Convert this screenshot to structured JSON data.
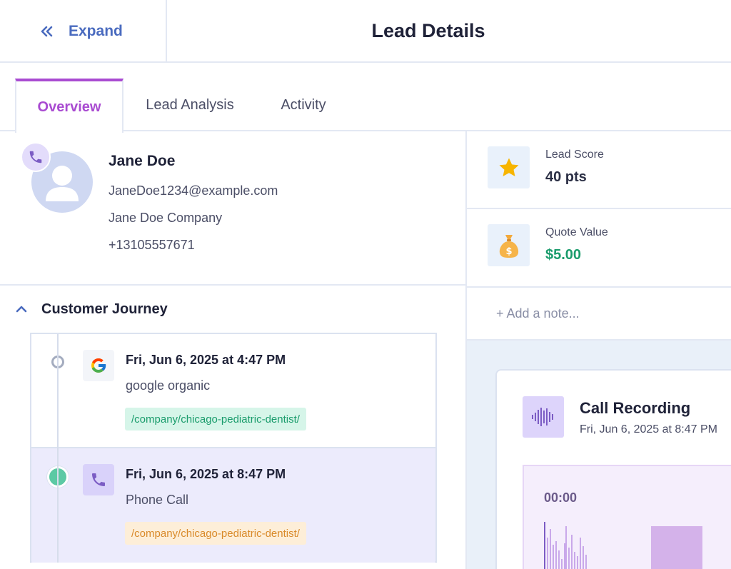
{
  "header": {
    "expand_label": "Expand",
    "title": "Lead Details"
  },
  "tabs": [
    {
      "label": "Overview",
      "active": true
    },
    {
      "label": "Lead Analysis",
      "active": false
    },
    {
      "label": "Activity",
      "active": false
    }
  ],
  "profile": {
    "name": "Jane Doe",
    "email": "JaneDoe1234@example.com",
    "company": "Jane Doe Company",
    "phone": "+13105557671"
  },
  "journey": {
    "title": "Customer Journey",
    "events": [
      {
        "icon": "google-icon",
        "date": "Fri, Jun 6, 2025 at 4:47 PM",
        "source": "google organic",
        "path": "/company/chicago-pediatric-dentist/"
      },
      {
        "icon": "phone-icon",
        "date": "Fri, Jun 6, 2025 at 8:47 PM",
        "source": "Phone Call",
        "path": "/company/chicago-pediatric-dentist/"
      }
    ]
  },
  "stats": {
    "lead_score": {
      "label": "Lead Score",
      "value": "40 pts",
      "icon": "star-icon"
    },
    "quote_value": {
      "label": "Quote Value",
      "value": "$5.00",
      "icon": "money-bag-icon"
    }
  },
  "note": {
    "add_label": "+ Add a note..."
  },
  "recording": {
    "title": "Call Recording",
    "date": "Fri, Jun 6, 2025 at 8:47 PM",
    "time": "00:00",
    "icon": "audio-wave-icon"
  },
  "colors": {
    "accent_purple": "#a94bd1",
    "link_blue": "#4a6bbf",
    "success_green": "#1a9c6c",
    "warning_orange": "#d98a2a"
  }
}
